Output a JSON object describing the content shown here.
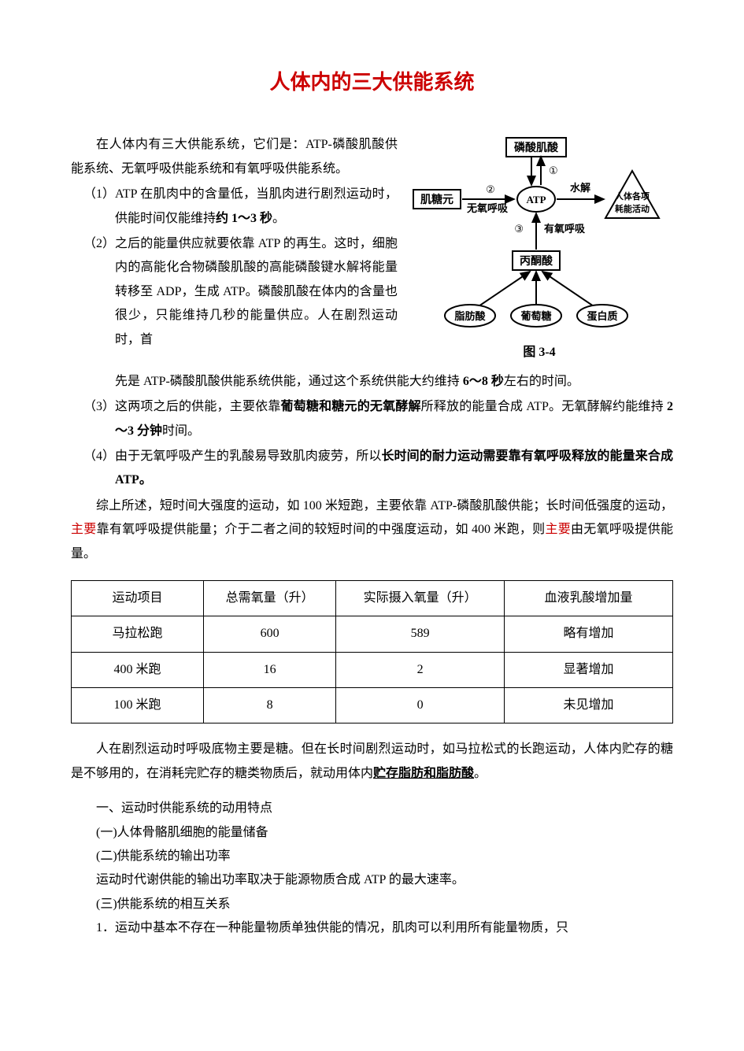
{
  "title": "人体内的三大供能系统",
  "intro": "在人体内有三大供能系统，它们是：ATP-磷酸肌酸供能系统、无氧呼吸供能系统和有氧呼吸供能系统。",
  "items": [
    {
      "num": "（1）",
      "pre": "ATP 在肌肉中的含量低，当肌肉进行剧烈运动时，供能时间仅能维持",
      "bold": "约 1～3 秒",
      "post": "。"
    },
    {
      "num": "（2）",
      "pre": "之后的能量供应就要依靠 ATP 的再生。这时，细胞内的高能化合物磷酸肌酸的高能磷酸键水解将能量转移至 ADP，生成 ATP。磷酸肌酸在体内的含量也很少，只能维持几秒的能量供应。人在剧烈运动时，首先是 ATP-磷酸肌酸供能系统供能，通过这个系统供能大约维持 ",
      "bold": "6～8 秒",
      "post": "左右的时间。"
    },
    {
      "num": "（3）",
      "pre": "这两项之后的供能，主要依靠",
      "bold": "葡萄糖和糖元的无氧酵解",
      "post_a": "所释放的能量合成 ATP。无氧酵解约能维持 ",
      "bold2": "2～3 分钟",
      "post_b": "时间。"
    },
    {
      "num": "（4）",
      "pre": "由于无氧呼吸产生的乳酸易导致肌肉疲劳，所以",
      "bold": "长时间的耐力运动需要靠有氧呼吸释放的能量来合成 ATP。",
      "post": ""
    }
  ],
  "summary": {
    "a": "综上所述，短时间大强度的运动，如 100 米短跑，主要依靠 ATP-磷酸肌酸供能；长时间低强度的运动，",
    "r1": "主要",
    "b": "靠有氧呼吸提供能量；介于二者之间的较短时间的中强度运动，如 400 米跑，则",
    "r2": "主要",
    "c": "由无氧呼吸提供能量。"
  },
  "diagram": {
    "caption": "图 3-4",
    "labels": {
      "cp": "磷酸肌酸",
      "glycogen": "肌糖元",
      "atp": "ATP",
      "hydrolysis": "水解",
      "activities": "人体各项耗能活动",
      "anaerobic": "无氧呼吸",
      "aerobic": "有氧呼吸",
      "pyruvate": "丙酮酸",
      "fat": "脂肪酸",
      "glucose": "葡萄糖",
      "protein": "蛋白质",
      "n1": "①",
      "n2": "②",
      "n3": "③"
    },
    "colors": {
      "stroke": "#000000",
      "fill_white": "#ffffff"
    }
  },
  "table": {
    "columns": [
      "运动项目",
      "总需氧量（升）",
      "实际摄入氧量（升）",
      "血液乳酸增加量"
    ],
    "rows": [
      [
        "马拉松跑",
        "600",
        "589",
        "略有增加"
      ],
      [
        "400 米跑",
        "16",
        "2",
        "显著增加"
      ],
      [
        "100 米跑",
        "8",
        "0",
        "未见增加"
      ]
    ],
    "col_widths": [
      "22%",
      "22%",
      "28%",
      "28%"
    ]
  },
  "para2": {
    "a": "人在剧烈运动时呼吸底物主要是糖。但在长时间剧烈运动时，如马拉松式的长跑运动，人体内贮存的糖是不够用的，在消耗完贮存的糖类物质后，就动用体内",
    "u": "贮存脂肪和脂肪酸",
    "b": "。"
  },
  "sections": [
    "一、运动时供能系统的动用特点",
    "(一)人体骨骼肌细胞的能量储备",
    "(二)供能系统的输出功率",
    "运动时代谢供能的输出功率取决于能源物质合成 ATP 的最大速率。",
    "(三)供能系统的相互关系",
    "1．运动中基本不存在一种能量物质单独供能的情况，肌肉可以利用所有能量物质，只"
  ]
}
